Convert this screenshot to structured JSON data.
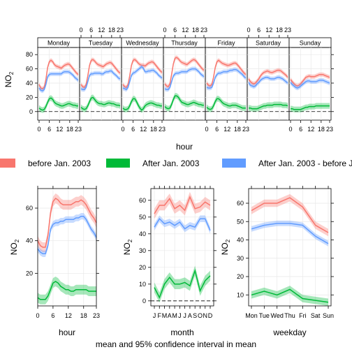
{
  "colors": {
    "before": "#F8766D",
    "after": "#00BA38",
    "diff": "#619CFF"
  },
  "legend": [
    {
      "name": "before Jan. 2003",
      "color": "#F8766D"
    },
    {
      "name": "After Jan. 2003",
      "color": "#00BA38"
    },
    {
      "name": "After Jan. 2003 - before J",
      "color": "#619CFF"
    }
  ],
  "footer": "mean and 95% confidence interval in mean",
  "chart_data": [
    {
      "type": "line",
      "panel": "hour-weekday",
      "xlabel": "hour",
      "ylabel": "NO2",
      "ylim": [
        -12,
        90
      ],
      "yticks": [
        0,
        20,
        40,
        60,
        80
      ],
      "xticks": [
        0,
        6,
        12,
        18,
        23
      ],
      "panels": [
        "Monday",
        "Tuesday",
        "Wednesday",
        "Thursday",
        "Friday",
        "Saturday",
        "Sunday"
      ],
      "x": [
        0,
        1,
        2,
        3,
        4,
        5,
        6,
        7,
        8,
        9,
        10,
        11,
        12,
        13,
        14,
        15,
        16,
        17,
        18,
        19,
        20,
        21,
        22,
        23
      ],
      "series": [
        {
          "name": "before Jan. 2003",
          "values_by_panel": [
            [
              38,
              33,
              32,
              34,
              45,
              62,
              70,
              72,
              70,
              66,
              64,
              63,
              62,
              61,
              63,
              65,
              66,
              67,
              66,
              63,
              60,
              57,
              54,
              52
            ],
            [
              38,
              35,
              34,
              38,
              50,
              65,
              72,
              73,
              71,
              68,
              66,
              65,
              64,
              63,
              65,
              67,
              68,
              69,
              68,
              65,
              62,
              59,
              56,
              54
            ],
            [
              38,
              35,
              34,
              38,
              50,
              65,
              72,
              73,
              71,
              68,
              66,
              65,
              65,
              64,
              66,
              68,
              69,
              70,
              69,
              66,
              63,
              60,
              57,
              55
            ],
            [
              39,
              36,
              35,
              39,
              52,
              67,
              75,
              76,
              74,
              71,
              69,
              68,
              67,
              66,
              68,
              70,
              72,
              73,
              72,
              69,
              66,
              63,
              60,
              58
            ],
            [
              40,
              37,
              36,
              38,
              48,
              62,
              70,
              72,
              70,
              68,
              67,
              66,
              65,
              65,
              66,
              67,
              68,
              68,
              66,
              63,
              60,
              57,
              54,
              52
            ],
            [
              46,
              42,
              40,
              39,
              40,
              43,
              46,
              50,
              53,
              55,
              56,
              57,
              56,
              55,
              55,
              56,
              57,
              58,
              58,
              57,
              55,
              53,
              51,
              48
            ],
            [
              45,
              42,
              39,
              37,
              36,
              37,
              39,
              42,
              45,
              48,
              49,
              50,
              49,
              49,
              49,
              50,
              51,
              52,
              52,
              52,
              51,
              50,
              49,
              48
            ]
          ]
        },
        {
          "name": "After Jan. 2003",
          "values_by_panel": [
            [
              5,
              3,
              2,
              3,
              7,
              13,
              18,
              19,
              17,
              13,
              11,
              10,
              9,
              8,
              8,
              9,
              10,
              11,
              11,
              10,
              9,
              9,
              8,
              8
            ],
            [
              6,
              4,
              3,
              4,
              8,
              14,
              19,
              20,
              17,
              14,
              12,
              11,
              11,
              10,
              10,
              11,
              12,
              12,
              11,
              11,
              10,
              9,
              9,
              8
            ],
            [
              5,
              3,
              3,
              4,
              8,
              14,
              18,
              18,
              14,
              9,
              5,
              2,
              4,
              8,
              10,
              11,
              12,
              12,
              11,
              10,
              9,
              9,
              8,
              8
            ],
            [
              7,
              5,
              4,
              5,
              10,
              17,
              22,
              22,
              20,
              16,
              13,
              12,
              11,
              10,
              10,
              11,
              12,
              13,
              12,
              11,
              10,
              10,
              9,
              9
            ],
            [
              6,
              4,
              3,
              4,
              8,
              14,
              18,
              18,
              16,
              13,
              11,
              10,
              9,
              8,
              8,
              9,
              9,
              9,
              8,
              7,
              6,
              5,
              5,
              5
            ],
            [
              5,
              5,
              4,
              4,
              4,
              4,
              5,
              6,
              7,
              8,
              8,
              9,
              9,
              9,
              9,
              10,
              10,
              10,
              10,
              10,
              9,
              9,
              9,
              8
            ],
            [
              4,
              4,
              3,
              3,
              3,
              3,
              3,
              4,
              5,
              6,
              6,
              7,
              7,
              7,
              7,
              8,
              8,
              8,
              8,
              8,
              8,
              8,
              8,
              8
            ]
          ]
        },
        {
          "name": "After Jan. 2003 - before J",
          "values_by_panel": [
            [
              33,
              30,
              29,
              31,
              38,
              49,
              52,
              53,
              53,
              53,
              53,
              53,
              53,
              53,
              55,
              56,
              56,
              56,
              55,
              53,
              51,
              48,
              46,
              44
            ],
            [
              32,
              31,
              31,
              34,
              42,
              51,
              53,
              53,
              54,
              54,
              54,
              54,
              53,
              53,
              55,
              56,
              56,
              57,
              57,
              54,
              52,
              50,
              47,
              46
            ],
            [
              33,
              32,
              31,
              34,
              42,
              51,
              54,
              55,
              57,
              59,
              61,
              63,
              61,
              56,
              56,
              57,
              57,
              58,
              58,
              56,
              54,
              51,
              49,
              47
            ],
            [
              32,
              31,
              31,
              34,
              42,
              50,
              53,
              54,
              54,
              55,
              56,
              56,
              56,
              56,
              58,
              59,
              60,
              60,
              60,
              58,
              56,
              53,
              51,
              49
            ],
            [
              34,
              33,
              33,
              34,
              40,
              48,
              52,
              54,
              54,
              55,
              56,
              56,
              56,
              57,
              58,
              58,
              59,
              59,
              58,
              56,
              54,
              52,
              49,
              47
            ],
            [
              41,
              37,
              36,
              35,
              36,
              39,
              41,
              44,
              46,
              47,
              48,
              48,
              47,
              46,
              46,
              46,
              47,
              48,
              48,
              47,
              46,
              44,
              42,
              40
            ],
            [
              41,
              38,
              36,
              34,
              33,
              34,
              36,
              38,
              40,
              42,
              43,
              43,
              42,
              42,
              42,
              42,
              43,
              44,
              44,
              44,
              43,
              42,
              41,
              40
            ]
          ]
        }
      ]
    },
    {
      "type": "line",
      "panel": "hour",
      "xlabel": "hour",
      "ylabel": "NO2",
      "ylim": [
        0,
        72
      ],
      "yticks": [
        20,
        40,
        60
      ],
      "xticks": [
        0,
        6,
        12,
        18,
        23
      ],
      "x": [
        0,
        1,
        2,
        3,
        4,
        5,
        6,
        7,
        8,
        9,
        10,
        11,
        12,
        13,
        14,
        15,
        16,
        17,
        18,
        19,
        20,
        21,
        22,
        23
      ],
      "series": [
        {
          "name": "before Jan. 2003",
          "values": [
            40,
            37,
            36,
            36,
            43,
            57,
            64,
            66,
            65,
            63,
            62,
            62,
            62,
            62,
            63,
            64,
            64,
            65,
            64,
            62,
            59,
            56,
            54,
            51
          ]
        },
        {
          "name": "After Jan. 2003",
          "values": [
            5,
            4,
            4,
            4,
            6,
            10,
            14,
            15,
            14,
            12,
            11,
            10,
            10,
            9,
            9,
            10,
            10,
            10,
            10,
            10,
            9,
            9,
            9,
            9
          ]
        },
        {
          "name": "After Jan. 2003 - before J",
          "values": [
            35,
            33,
            32,
            32,
            37,
            47,
            50,
            51,
            51,
            52,
            52,
            53,
            53,
            53,
            53,
            54,
            54,
            55,
            55,
            53,
            50,
            47,
            45,
            42
          ]
        }
      ]
    },
    {
      "type": "line",
      "panel": "month",
      "xlabel": "month",
      "ylabel": "NO2",
      "ylim": [
        -3,
        67
      ],
      "yticks": [
        0,
        10,
        20,
        30,
        40,
        50,
        60
      ],
      "categories": [
        "J",
        "F",
        "M",
        "A",
        "M",
        "J",
        "J",
        "A",
        "S",
        "O",
        "N",
        "D"
      ],
      "series": [
        {
          "name": "before Jan. 2003",
          "values": [
            52,
            57,
            57,
            61,
            55,
            57,
            54,
            62,
            55,
            56,
            59,
            57
          ]
        },
        {
          "name": "After Jan. 2003",
          "values": [
            8,
            2,
            10,
            14,
            10,
            10,
            11,
            9,
            18,
            6,
            12,
            15
          ]
        },
        {
          "name": "After Jan. 2003 - before J",
          "values": [
            44,
            49,
            46,
            47,
            45,
            47,
            43,
            45,
            44,
            49,
            49,
            42
          ]
        }
      ]
    },
    {
      "type": "line",
      "panel": "weekday",
      "xlabel": "weekday",
      "ylabel": "NO2",
      "ylim": [
        4,
        68
      ],
      "yticks": [
        10,
        20,
        30,
        40,
        50,
        60
      ],
      "categories": [
        "Mon",
        "Tue",
        "Wed",
        "Thu",
        "Fri",
        "Sat",
        "Sun"
      ],
      "series": [
        {
          "name": "before Jan. 2003",
          "values": [
            56,
            60,
            60,
            63,
            58,
            48,
            44
          ]
        },
        {
          "name": "After Jan. 2003",
          "values": [
            10,
            12,
            10,
            13,
            8,
            7,
            6
          ]
        },
        {
          "name": "After Jan. 2003 - before J",
          "values": [
            46,
            48,
            49,
            49,
            48,
            42,
            38
          ]
        }
      ]
    }
  ]
}
